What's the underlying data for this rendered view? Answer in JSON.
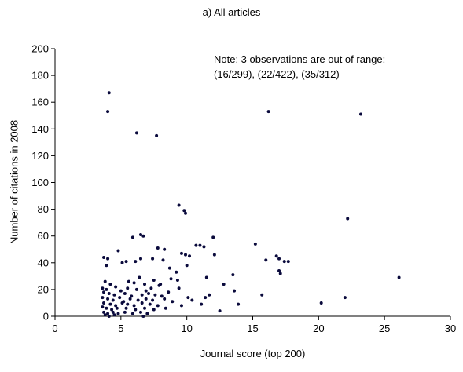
{
  "chart_data": {
    "type": "scatter",
    "title": "a) All articles",
    "xlabel": "Journal score (top 200)",
    "ylabel": "Number of citations in 2008",
    "xlim": [
      0,
      30
    ],
    "ylim": [
      0,
      200
    ],
    "xticks": [
      "0",
      "5",
      "10",
      "15",
      "20",
      "25",
      "30"
    ],
    "yticks": [
      "0",
      "20",
      "40",
      "60",
      "80",
      "100",
      "120",
      "140",
      "160",
      "180",
      "200"
    ],
    "grid": false,
    "annotation": {
      "line1": "Note: 3 observations are out of range:",
      "line2": "(16/299), (22/422), (35/312)"
    },
    "point_color": "#0a0a3c",
    "points": [
      [
        4.1,
        167
      ],
      [
        4.0,
        153
      ],
      [
        6.2,
        137
      ],
      [
        7.7,
        135
      ],
      [
        16.2,
        153
      ],
      [
        23.2,
        151
      ],
      [
        9.4,
        83
      ],
      [
        9.8,
        79
      ],
      [
        9.9,
        77
      ],
      [
        22.2,
        73
      ],
      [
        6.5,
        61
      ],
      [
        6.7,
        60
      ],
      [
        5.9,
        59
      ],
      [
        12.0,
        59
      ],
      [
        15.2,
        54
      ],
      [
        10.7,
        53
      ],
      [
        11.0,
        53
      ],
      [
        11.3,
        52
      ],
      [
        7.8,
        51
      ],
      [
        8.3,
        50
      ],
      [
        4.8,
        49
      ],
      [
        9.6,
        47
      ],
      [
        9.9,
        46
      ],
      [
        12.1,
        46
      ],
      [
        10.2,
        45
      ],
      [
        16.8,
        45
      ],
      [
        17.0,
        43
      ],
      [
        16.0,
        42
      ],
      [
        17.4,
        41
      ],
      [
        17.7,
        41
      ],
      [
        3.7,
        44
      ],
      [
        4.0,
        43
      ],
      [
        3.9,
        38
      ],
      [
        5.1,
        40
      ],
      [
        5.4,
        41
      ],
      [
        6.1,
        41
      ],
      [
        6.5,
        43
      ],
      [
        7.4,
        43
      ],
      [
        8.2,
        42
      ],
      [
        8.7,
        36
      ],
      [
        9.2,
        33
      ],
      [
        10.0,
        38
      ],
      [
        17.0,
        34
      ],
      [
        17.1,
        32
      ],
      [
        13.5,
        31
      ],
      [
        26.1,
        29
      ],
      [
        11.5,
        29
      ],
      [
        8.8,
        28
      ],
      [
        9.3,
        27
      ],
      [
        3.8,
        26
      ],
      [
        4.2,
        24
      ],
      [
        5.6,
        26
      ],
      [
        6.0,
        25
      ],
      [
        6.4,
        29
      ],
      [
        6.8,
        24
      ],
      [
        7.5,
        27
      ],
      [
        8.0,
        24
      ],
      [
        12.8,
        24
      ],
      [
        3.6,
        21
      ],
      [
        3.9,
        20
      ],
      [
        4.6,
        22
      ],
      [
        5.0,
        19
      ],
      [
        5.5,
        21
      ],
      [
        6.2,
        20
      ],
      [
        6.9,
        19
      ],
      [
        7.3,
        21
      ],
      [
        7.9,
        23
      ],
      [
        9.4,
        21
      ],
      [
        13.6,
        19
      ],
      [
        3.7,
        18
      ],
      [
        4.1,
        17
      ],
      [
        4.5,
        16
      ],
      [
        5.3,
        17
      ],
      [
        5.8,
        15
      ],
      [
        6.6,
        16
      ],
      [
        7.1,
        17
      ],
      [
        7.6,
        16
      ],
      [
        8.1,
        15
      ],
      [
        8.6,
        18
      ],
      [
        11.7,
        16
      ],
      [
        15.7,
        16
      ],
      [
        3.6,
        14
      ],
      [
        4.0,
        13
      ],
      [
        4.4,
        12
      ],
      [
        4.9,
        14
      ],
      [
        5.2,
        11
      ],
      [
        5.7,
        13
      ],
      [
        6.3,
        12
      ],
      [
        6.9,
        13
      ],
      [
        7.4,
        12
      ],
      [
        8.3,
        13
      ],
      [
        8.9,
        11
      ],
      [
        10.1,
        14
      ],
      [
        10.4,
        12
      ],
      [
        11.4,
        14
      ],
      [
        3.7,
        10
      ],
      [
        4.2,
        9
      ],
      [
        4.6,
        8
      ],
      [
        5.1,
        10
      ],
      [
        5.5,
        9
      ],
      [
        6.0,
        8
      ],
      [
        6.6,
        10
      ],
      [
        7.2,
        9
      ],
      [
        7.8,
        8
      ],
      [
        9.6,
        8
      ],
      [
        11.1,
        9
      ],
      [
        13.9,
        9
      ],
      [
        20.2,
        10
      ],
      [
        22.0,
        14
      ],
      [
        3.6,
        7
      ],
      [
        3.9,
        6
      ],
      [
        4.3,
        5
      ],
      [
        4.7,
        6
      ],
      [
        5.4,
        6
      ],
      [
        6.1,
        5
      ],
      [
        6.8,
        6
      ],
      [
        7.5,
        5
      ],
      [
        8.4,
        6
      ],
      [
        12.5,
        4
      ],
      [
        3.7,
        3
      ],
      [
        4.0,
        2
      ],
      [
        4.4,
        3
      ],
      [
        4.8,
        2
      ],
      [
        5.3,
        3
      ],
      [
        5.9,
        2
      ],
      [
        6.5,
        3
      ],
      [
        7.0,
        2
      ],
      [
        3.8,
        1
      ],
      [
        4.1,
        0
      ],
      [
        4.5,
        1
      ],
      [
        6.7,
        0
      ]
    ]
  }
}
